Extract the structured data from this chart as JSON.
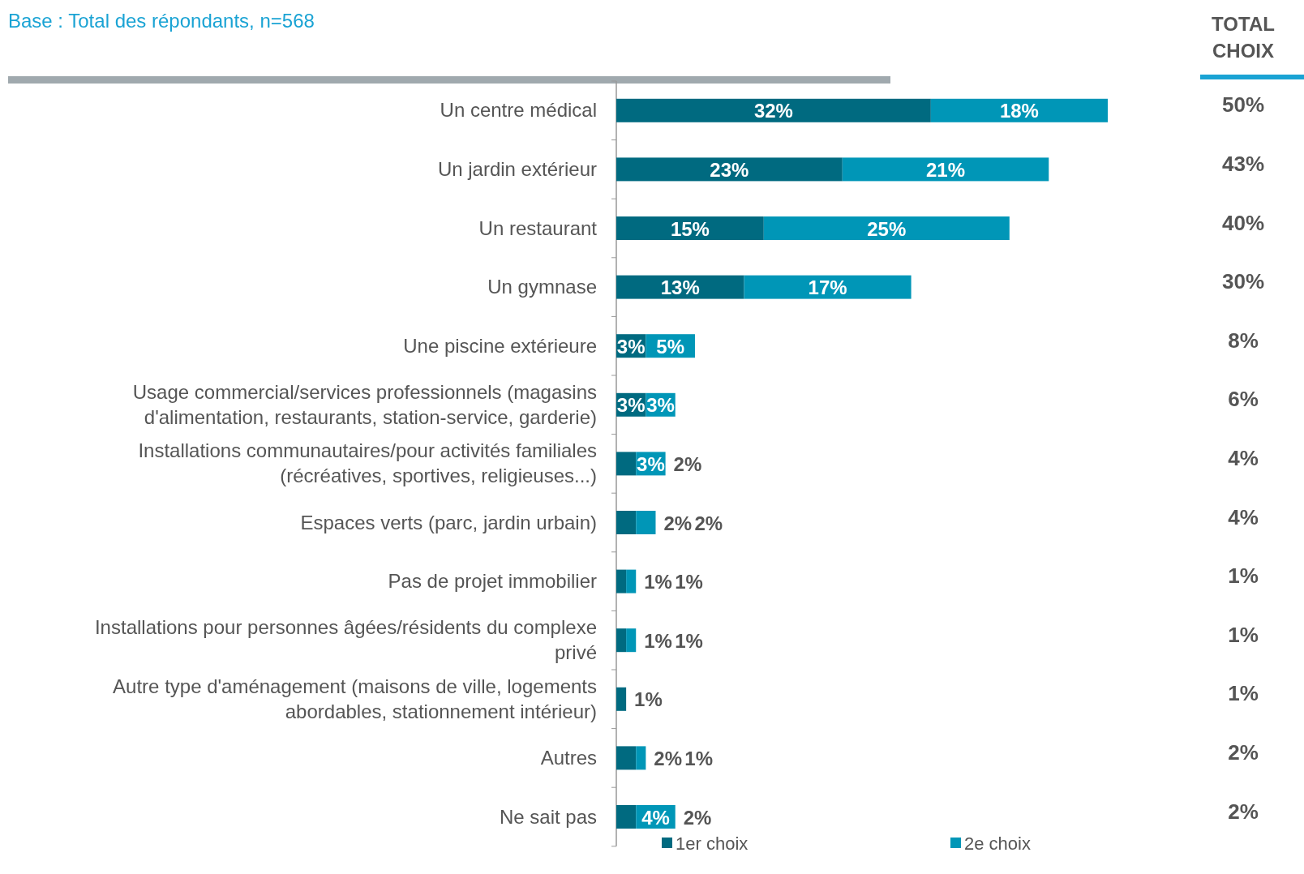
{
  "chart_data": {
    "type": "bar",
    "orientation": "horizontal",
    "stacked": true,
    "subtitle": "Base : Total des répondants, n=568",
    "categories": [
      "Un centre médical",
      "Un jardin extérieur",
      "Un restaurant",
      "Un gymnase",
      "Une piscine extérieure",
      "Usage commercial/services professionnels (magasins d'alimentation, restaurants, station-service, garderie)",
      "Installations communautaires/pour activités familiales (récréatives, sportives, religieuses...)",
      "Espaces verts (parc, jardin urbain)",
      "Pas de projet immobilier",
      "Installations pour personnes âgées/résidents du complexe privé",
      "Autre type d'aménagement (maisons de ville, logements abordables, stationnement intérieur)",
      "Autres",
      "Ne sait pas"
    ],
    "series": [
      {
        "name": "1er choix",
        "color": "#006a80",
        "values": [
          32,
          23,
          15,
          13,
          3,
          3,
          2,
          2,
          1,
          1,
          1,
          2,
          2
        ],
        "value_labels": [
          "32%",
          "23%",
          "15%",
          "13%",
          "3%",
          "3%",
          "2%",
          "2%",
          "1%",
          "1%",
          "1%",
          "2%",
          "2%"
        ]
      },
      {
        "name": "2e choix",
        "color": "#0096b7",
        "values": [
          18,
          21,
          25,
          17,
          5,
          3,
          3,
          2,
          1,
          1,
          null,
          1,
          4
        ],
        "value_labels": [
          "18%",
          "21%",
          "25%",
          "17%",
          "5%",
          "3%",
          "3%",
          "2%",
          "1%",
          "1%",
          null,
          "1%",
          "4%"
        ]
      }
    ],
    "annotations": [
      "TOTAL CHOIX",
      "50%",
      "43%",
      "40%",
      "30%",
      "8%",
      "6%",
      "4%",
      "4%",
      "1%",
      "1%",
      "1%",
      "2%",
      "2%"
    ],
    "legend": "bottom"
  }
}
